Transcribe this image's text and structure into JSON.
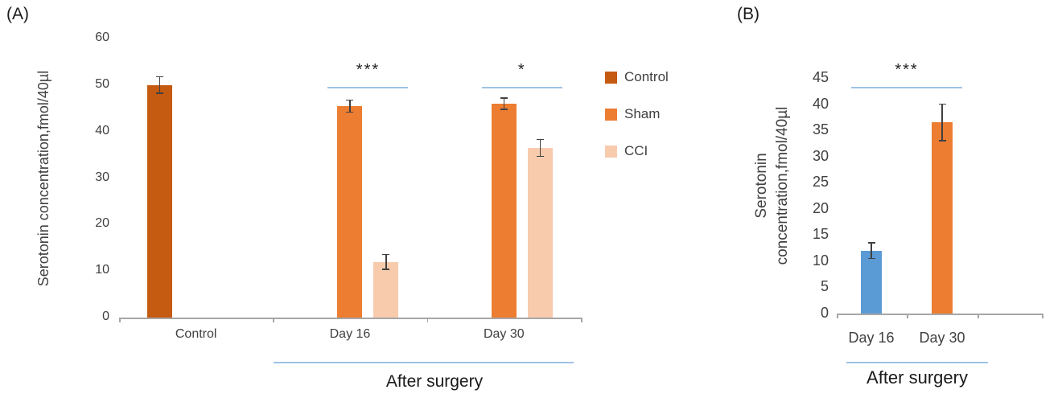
{
  "figure": {
    "panels": [
      {
        "id": "A",
        "label": "(A)",
        "ylabel": "Serotonin concentration,fmol/40µl",
        "footer": "After surgery"
      },
      {
        "id": "B",
        "label": "(B)",
        "ylabel_line1": "Serotonin",
        "ylabel_line2": "concentration,fmol/40µl",
        "footer": "After surgery"
      }
    ]
  },
  "colors": {
    "control": "#c55a11",
    "sham": "#ed7d31",
    "cci": "#f8cbad",
    "day16_blue": "#5b9bd5",
    "significance_line": "#9dc3e6",
    "axis": "#a6a6a6",
    "text": "#404040"
  },
  "chart_data": [
    {
      "type": "bar",
      "panel": "A",
      "title": "",
      "ylabel": "Serotonin concentration,fmol/40µl",
      "categories": [
        "Control",
        "Day 16",
        "Day 30"
      ],
      "series": [
        {
          "name": "Control",
          "color": "#c55a11",
          "values": [
            50,
            null,
            null
          ],
          "errors": [
            1.8,
            null,
            null
          ]
        },
        {
          "name": "Sham",
          "color": "#ed7d31",
          "values": [
            null,
            45.5,
            46
          ],
          "errors": [
            null,
            1.3,
            1.2
          ]
        },
        {
          "name": "CCI",
          "color": "#f8cbad",
          "values": [
            null,
            12,
            36.5
          ],
          "errors": [
            null,
            1.6,
            1.8
          ]
        }
      ],
      "ylim": [
        0,
        60
      ],
      "ytick_step": 10,
      "grid": false,
      "legend_position": "right",
      "annotations": [
        {
          "text": "***",
          "category": "Day 16"
        },
        {
          "text": "*",
          "category": "Day 30"
        }
      ],
      "x_group_label": "After surgery",
      "x_group_span": [
        "Day 16",
        "Day 30"
      ]
    },
    {
      "type": "bar",
      "panel": "B",
      "title": "",
      "ylabel": "Serotonin concentration,fmol/40µl",
      "categories": [
        "Day 16",
        "Day 30"
      ],
      "series": [
        {
          "name": "Day 16",
          "color": "#5b9bd5",
          "values": [
            12,
            null
          ],
          "errors": [
            1.5,
            null
          ]
        },
        {
          "name": "Day 30",
          "color": "#ed7d31",
          "values": [
            null,
            36.5
          ],
          "errors": [
            null,
            3.5
          ]
        }
      ],
      "ylim": [
        0,
        45
      ],
      "ytick_step": 5,
      "grid": false,
      "legend_position": "none",
      "annotations": [
        {
          "text": "***",
          "span": [
            "Day 16",
            "Day 30"
          ]
        }
      ],
      "x_group_label": "After surgery",
      "x_group_span": [
        "Day 16",
        "Day 30"
      ]
    }
  ]
}
